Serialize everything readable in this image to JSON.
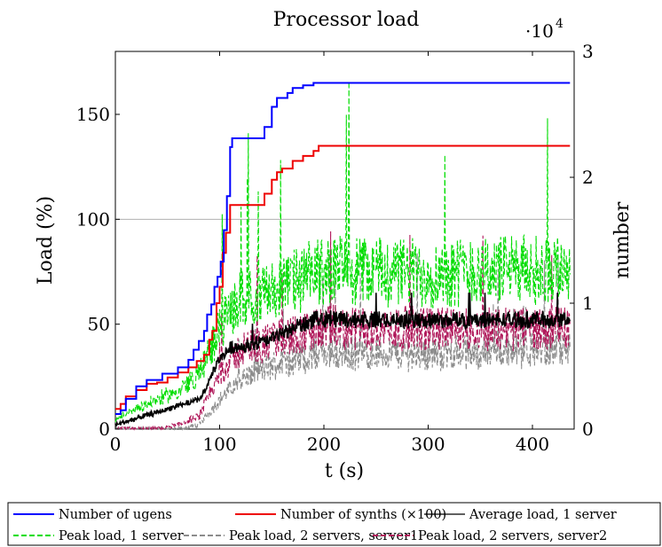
{
  "chart_data": {
    "type": "line",
    "title": "Processor load",
    "xlabel": "t (s)",
    "ylabel_left": "Load (%)",
    "ylabel_right": "number",
    "right_scale_label": "·10",
    "right_scale_exponent": "4",
    "xlim": [
      0,
      440
    ],
    "ylim_left": [
      0,
      180
    ],
    "ylim_right": [
      0,
      30000
    ],
    "grid": false,
    "reference_line_left": 100,
    "x_ticks": [
      "0",
      "100",
      "200",
      "300",
      "400"
    ],
    "x_tick_values": [
      0,
      100,
      200,
      300,
      400
    ],
    "y_ticks_left": [
      "0",
      "50",
      "100",
      "150"
    ],
    "y_tick_values_left": [
      0,
      50,
      100,
      150
    ],
    "y_ticks_right": [
      "0",
      "1",
      "2",
      "3"
    ],
    "y_tick_values_right": [
      0,
      10000,
      20000,
      30000
    ],
    "legend_position": "bottom",
    "series": [
      {
        "name": "Number of ugens",
        "axis": "right",
        "color": "#0000ff",
        "style": "solid-step",
        "points": [
          [
            0,
            1200
          ],
          [
            5,
            1500
          ],
          [
            10,
            2400
          ],
          [
            20,
            3400
          ],
          [
            30,
            3900
          ],
          [
            40,
            3900
          ],
          [
            45,
            4400
          ],
          [
            55,
            4400
          ],
          [
            60,
            4900
          ],
          [
            70,
            5500
          ],
          [
            75,
            6300
          ],
          [
            80,
            7000
          ],
          [
            85,
            7800
          ],
          [
            88,
            9100
          ],
          [
            92,
            9900
          ],
          [
            95,
            11300
          ],
          [
            98,
            12100
          ],
          [
            101,
            13300
          ],
          [
            104,
            15800
          ],
          [
            107,
            18500
          ],
          [
            110,
            22400
          ],
          [
            112,
            23100
          ],
          [
            140,
            23100
          ],
          [
            143,
            24000
          ],
          [
            150,
            25600
          ],
          [
            155,
            26300
          ],
          [
            160,
            26300
          ],
          [
            165,
            26700
          ],
          [
            170,
            27100
          ],
          [
            180,
            27300
          ],
          [
            190,
            27500
          ],
          [
            200,
            27500
          ],
          [
            436,
            27500
          ]
        ]
      },
      {
        "name": "Number of synths (×100)",
        "axis": "right",
        "color": "#ee0000",
        "style": "solid-step",
        "points": [
          [
            0,
            1600
          ],
          [
            5,
            2000
          ],
          [
            10,
            2600
          ],
          [
            20,
            3100
          ],
          [
            30,
            3600
          ],
          [
            40,
            3700
          ],
          [
            50,
            4100
          ],
          [
            60,
            4500
          ],
          [
            70,
            4900
          ],
          [
            78,
            5400
          ],
          [
            85,
            5900
          ],
          [
            90,
            7100
          ],
          [
            93,
            7800
          ],
          [
            97,
            10000
          ],
          [
            100,
            11300
          ],
          [
            103,
            14000
          ],
          [
            106,
            15600
          ],
          [
            110,
            17800
          ],
          [
            140,
            17800
          ],
          [
            143,
            18700
          ],
          [
            150,
            19800
          ],
          [
            155,
            20400
          ],
          [
            160,
            20700
          ],
          [
            170,
            21300
          ],
          [
            180,
            21700
          ],
          [
            190,
            22100
          ],
          [
            195,
            22500
          ],
          [
            436,
            22500
          ]
        ]
      },
      {
        "name": "Average load, 1 server",
        "axis": "left",
        "color": "#000000",
        "style": "solid-noisy",
        "points": [
          [
            0,
            2
          ],
          [
            20,
            5
          ],
          [
            40,
            8
          ],
          [
            60,
            11
          ],
          [
            80,
            14
          ],
          [
            88,
            20
          ],
          [
            96,
            30
          ],
          [
            104,
            36
          ],
          [
            112,
            39
          ],
          [
            130,
            40
          ],
          [
            150,
            43
          ],
          [
            170,
            48
          ],
          [
            185,
            51
          ],
          [
            200,
            53
          ],
          [
            240,
            52
          ],
          [
            300,
            52
          ],
          [
            360,
            52
          ],
          [
            436,
            52
          ]
        ]
      },
      {
        "name": "Peak load, 1 server",
        "axis": "left",
        "color": "#00dd00",
        "style": "dashed-spiky",
        "points": [
          [
            0,
            4
          ],
          [
            20,
            10
          ],
          [
            40,
            14
          ],
          [
            60,
            18
          ],
          [
            80,
            26
          ],
          [
            100,
            48
          ],
          [
            120,
            62
          ],
          [
            140,
            64
          ],
          [
            160,
            68
          ],
          [
            180,
            72
          ],
          [
            200,
            76
          ],
          [
            240,
            76
          ],
          [
            300,
            74
          ],
          [
            360,
            76
          ],
          [
            436,
            76
          ]
        ]
      },
      {
        "name": "Peak load, 2 servers, server1",
        "axis": "left",
        "color": "#8c8c8c",
        "style": "dashed-spiky",
        "points": [
          [
            0,
            0
          ],
          [
            40,
            0
          ],
          [
            60,
            0
          ],
          [
            80,
            2
          ],
          [
            100,
            14
          ],
          [
            120,
            24
          ],
          [
            140,
            28
          ],
          [
            160,
            32
          ],
          [
            180,
            34
          ],
          [
            200,
            36
          ],
          [
            300,
            36
          ],
          [
            436,
            38
          ]
        ]
      },
      {
        "name": "Peak load, 2 servers, server2",
        "axis": "left",
        "color": "#b0185a",
        "style": "dashed-spiky",
        "points": [
          [
            0,
            0
          ],
          [
            40,
            0
          ],
          [
            60,
            2
          ],
          [
            80,
            6
          ],
          [
            100,
            26
          ],
          [
            120,
            38
          ],
          [
            140,
            40
          ],
          [
            160,
            44
          ],
          [
            180,
            46
          ],
          [
            200,
            48
          ],
          [
            300,
            48
          ],
          [
            436,
            48
          ]
        ]
      }
    ]
  }
}
